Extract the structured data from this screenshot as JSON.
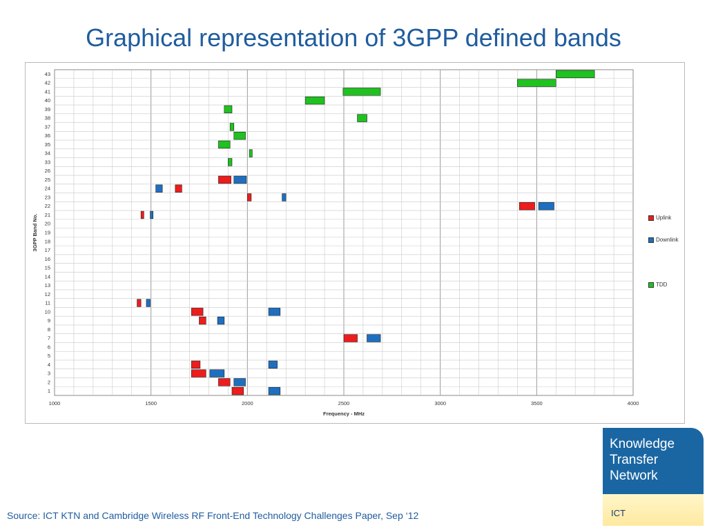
{
  "slide": {
    "title": "Graphical representation of 3GPP defined bands",
    "source": "Source: ICT KTN and Cambridge Wireless RF Front-End Technology Challenges Paper, Sep ‘12"
  },
  "logo": {
    "lines": [
      "Knowledge",
      "Transfer",
      "Network"
    ],
    "sub": "ICT"
  },
  "colors": {
    "uplink": "#ee1c1c",
    "downlink": "#1e6fc0",
    "tdd": "#1fc21f",
    "title": "#1f5c9e"
  },
  "chart_data": {
    "type": "bar",
    "orientation": "horizontal-range",
    "title": "",
    "xlabel": "Frequency - MHz",
    "ylabel": "3GPP Band No.",
    "xlim": [
      1000,
      4000
    ],
    "xticks": [
      1000,
      1500,
      2000,
      2500,
      3000,
      3500,
      4000
    ],
    "categories": [
      "1",
      "2",
      "3",
      "4",
      "5",
      "6",
      "7",
      "8",
      "9",
      "10",
      "11",
      "12",
      "13",
      "14",
      "15",
      "16",
      "17",
      "18",
      "19",
      "20",
      "21",
      "22",
      "23",
      "24",
      "25",
      "26",
      "33",
      "34",
      "35",
      "36",
      "37",
      "38",
      "39",
      "40",
      "41",
      "42",
      "43"
    ],
    "legend": [
      "Uplink",
      "Downlink",
      "TDD"
    ],
    "legend_position": "right",
    "grid": true,
    "series": [
      {
        "name": "Uplink",
        "ranges": [
          {
            "band": "1",
            "from": 1920,
            "to": 1980
          },
          {
            "band": "2",
            "from": 1850,
            "to": 1910
          },
          {
            "band": "3",
            "from": 1710,
            "to": 1785
          },
          {
            "band": "4",
            "from": 1710,
            "to": 1755
          },
          {
            "band": "7",
            "from": 2500,
            "to": 2570
          },
          {
            "band": "9",
            "from": 1750,
            "to": 1785
          },
          {
            "band": "10",
            "from": 1710,
            "to": 1770
          },
          {
            "band": "11",
            "from": 1428,
            "to": 1448
          },
          {
            "band": "21",
            "from": 1448,
            "to": 1463
          },
          {
            "band": "22",
            "from": 3410,
            "to": 3490
          },
          {
            "band": "23",
            "from": 2000,
            "to": 2020
          },
          {
            "band": "24",
            "from": 1626,
            "to": 1660
          },
          {
            "band": "25",
            "from": 1850,
            "to": 1915
          }
        ]
      },
      {
        "name": "Downlink",
        "ranges": [
          {
            "band": "1",
            "from": 2110,
            "to": 2170
          },
          {
            "band": "2",
            "from": 1930,
            "to": 1990
          },
          {
            "band": "3",
            "from": 1805,
            "to": 1880
          },
          {
            "band": "4",
            "from": 2110,
            "to": 2155
          },
          {
            "band": "7",
            "from": 2620,
            "to": 2690
          },
          {
            "band": "9",
            "from": 1845,
            "to": 1880
          },
          {
            "band": "10",
            "from": 2110,
            "to": 2170
          },
          {
            "band": "11",
            "from": 1476,
            "to": 1496
          },
          {
            "band": "21",
            "from": 1496,
            "to": 1511
          },
          {
            "band": "22",
            "from": 3510,
            "to": 3590
          },
          {
            "band": "23",
            "from": 2180,
            "to": 2200
          },
          {
            "band": "24",
            "from": 1525,
            "to": 1559
          },
          {
            "band": "25",
            "from": 1930,
            "to": 1995
          }
        ]
      },
      {
        "name": "TDD",
        "ranges": [
          {
            "band": "33",
            "from": 1900,
            "to": 1920
          },
          {
            "band": "34",
            "from": 2010,
            "to": 2025
          },
          {
            "band": "35",
            "from": 1850,
            "to": 1910
          },
          {
            "band": "36",
            "from": 1930,
            "to": 1990
          },
          {
            "band": "37",
            "from": 1910,
            "to": 1930
          },
          {
            "band": "38",
            "from": 2570,
            "to": 2620
          },
          {
            "band": "39",
            "from": 1880,
            "to": 1920
          },
          {
            "band": "40",
            "from": 2300,
            "to": 2400
          },
          {
            "band": "41",
            "from": 2496,
            "to": 2690
          },
          {
            "band": "42",
            "from": 3400,
            "to": 3600
          },
          {
            "band": "43",
            "from": 3600,
            "to": 3800
          }
        ]
      }
    ]
  }
}
